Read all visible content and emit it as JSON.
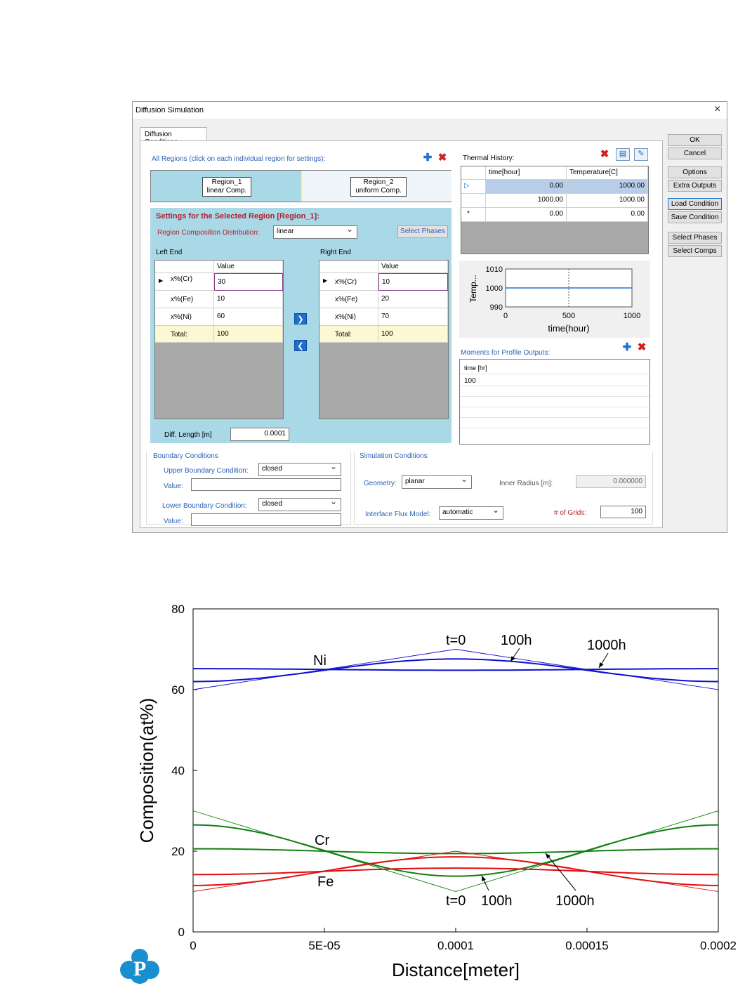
{
  "window": {
    "title": "Diffusion Simulation",
    "close_glyph": "×"
  },
  "tab": {
    "label": "Diffusion Conditions"
  },
  "regions": {
    "header": "All Regions (click on each individual region for settings):",
    "region1": {
      "name": "Region_1",
      "type": "linear Comp."
    },
    "region2": {
      "name": "Region_2",
      "type": "uniform Comp."
    }
  },
  "settings": {
    "title": "Settings for the Selected Region [Region_1]:",
    "dist_label": "Region Composition Distribution:",
    "dist_value": "linear",
    "select_phases": "Select Phases",
    "left_end": "Left End",
    "right_end": "Right End",
    "value_header": "Value",
    "left_rows": [
      {
        "label": "x%(Cr)",
        "value": "30"
      },
      {
        "label": "x%(Fe)",
        "value": "10"
      },
      {
        "label": "x%(Ni)",
        "value": "60"
      },
      {
        "label": "Total:",
        "value": "100"
      }
    ],
    "right_rows": [
      {
        "label": "x%(Cr)",
        "value": "10"
      },
      {
        "label": "x%(Fe)",
        "value": "20"
      },
      {
        "label": "x%(Ni)",
        "value": "70"
      },
      {
        "label": "Total:",
        "value": "100"
      }
    ],
    "diff_length_label": "Diff. Length [m]",
    "diff_length_value": "0.0001"
  },
  "thermal": {
    "title": "Thermal History:",
    "col_time": "time[hour]",
    "col_temp": "Temperature[C]",
    "rows": [
      {
        "marker": "▷",
        "time": "0.00",
        "temp": "1000.00"
      },
      {
        "marker": "",
        "time": "1000.00",
        "temp": "1000.00"
      },
      {
        "marker": "*",
        "time": "0.00",
        "temp": "0.00"
      }
    ],
    "mini_chart": {
      "ylabel": "Temp...",
      "xlabel": "time(hour)",
      "yticks": [
        "1010",
        "1000",
        "990"
      ],
      "xticks": [
        "0",
        "500",
        "1000"
      ]
    }
  },
  "moments": {
    "title": "Moments for Profile Outputs:",
    "header": "time [hr]",
    "value": "100"
  },
  "boundary": {
    "title": "Boundary Conditions",
    "upper_label": "Upper Boundary Condition:",
    "upper_value": "closed",
    "lower_label": "Lower Boundary Condition:",
    "lower_value": "closed",
    "value_label": "Value:"
  },
  "simulation": {
    "title": "Simulation Conditions",
    "geometry_label": "Geometry:",
    "geometry_value": "planar",
    "inner_radius_label": "Inner Radius [m]:",
    "inner_radius_value": "0.000000",
    "flux_label": "Interface Flux Model:",
    "flux_value": "automatic",
    "grids_label": "# of Grids:",
    "grids_value": "100"
  },
  "side_buttons": {
    "ok": "OK",
    "cancel": "Cancel",
    "options": "Options",
    "extra": "Extra Outputs",
    "load": "Load Condition",
    "save": "Save Condition",
    "select_phases": "Select Phases",
    "select_comps": "Select Comps"
  },
  "colors": {
    "ni": "#1010d0",
    "cr": "#108010",
    "fe": "#e01010",
    "panel_blue": "#a9d8e6"
  },
  "chart_data": {
    "type": "line",
    "xlabel": "Distance[meter]",
    "ylabel": "Composition(at%)",
    "xlim": [
      0,
      0.0002
    ],
    "ylim": [
      0,
      80
    ],
    "xticks": [
      "0",
      "5E-05",
      "0.0001",
      "0.00015",
      "0.0002"
    ],
    "yticks": [
      "0",
      "20",
      "40",
      "60",
      "80"
    ],
    "series": [
      {
        "name": "Ni",
        "time": "t=0",
        "x": [
          0,
          0.0001,
          0.0002
        ],
        "y": [
          60,
          70,
          60
        ]
      },
      {
        "name": "Ni",
        "time": "100h",
        "x": [
          0,
          5e-05,
          0.0001,
          0.00015,
          0.0002
        ],
        "y": [
          62,
          65,
          67.6,
          65,
          62
        ]
      },
      {
        "name": "Ni",
        "time": "1000h",
        "x": [
          0,
          5e-05,
          0.0001,
          0.00015,
          0.0002
        ],
        "y": [
          65.2,
          65,
          64.8,
          65,
          65.2
        ]
      },
      {
        "name": "Cr",
        "time": "t=0",
        "x": [
          0,
          0.0001,
          0.0002
        ],
        "y": [
          30,
          10,
          30
        ]
      },
      {
        "name": "Cr",
        "time": "100h",
        "x": [
          0,
          5e-05,
          0.0001,
          0.00015,
          0.0002
        ],
        "y": [
          26.5,
          20,
          13.8,
          20,
          26.5
        ]
      },
      {
        "name": "Cr",
        "time": "1000h",
        "x": [
          0,
          5e-05,
          0.0001,
          0.00015,
          0.0002
        ],
        "y": [
          20.6,
          20,
          19.4,
          20,
          20.6
        ]
      },
      {
        "name": "Fe",
        "time": "t=0",
        "x": [
          0,
          0.0001,
          0.0002
        ],
        "y": [
          10,
          20,
          10
        ]
      },
      {
        "name": "Fe",
        "time": "100h",
        "x": [
          0,
          5e-05,
          0.0001,
          0.00015,
          0.0002
        ],
        "y": [
          11.5,
          15,
          18.6,
          15,
          11.5
        ]
      },
      {
        "name": "Fe",
        "time": "1000h",
        "x": [
          0,
          5e-05,
          0.0001,
          0.00015,
          0.0002
        ],
        "y": [
          14.2,
          15,
          15.8,
          15,
          14.2
        ]
      }
    ],
    "annotations": {
      "ni": "Ni",
      "cr": "Cr",
      "fe": "Fe",
      "top_t0": "t=0",
      "top_100h": "100h",
      "top_1000h": "1000h",
      "bot_t0": "t=0",
      "bot_100h": "100h",
      "bot_1000h": "1000h"
    }
  }
}
